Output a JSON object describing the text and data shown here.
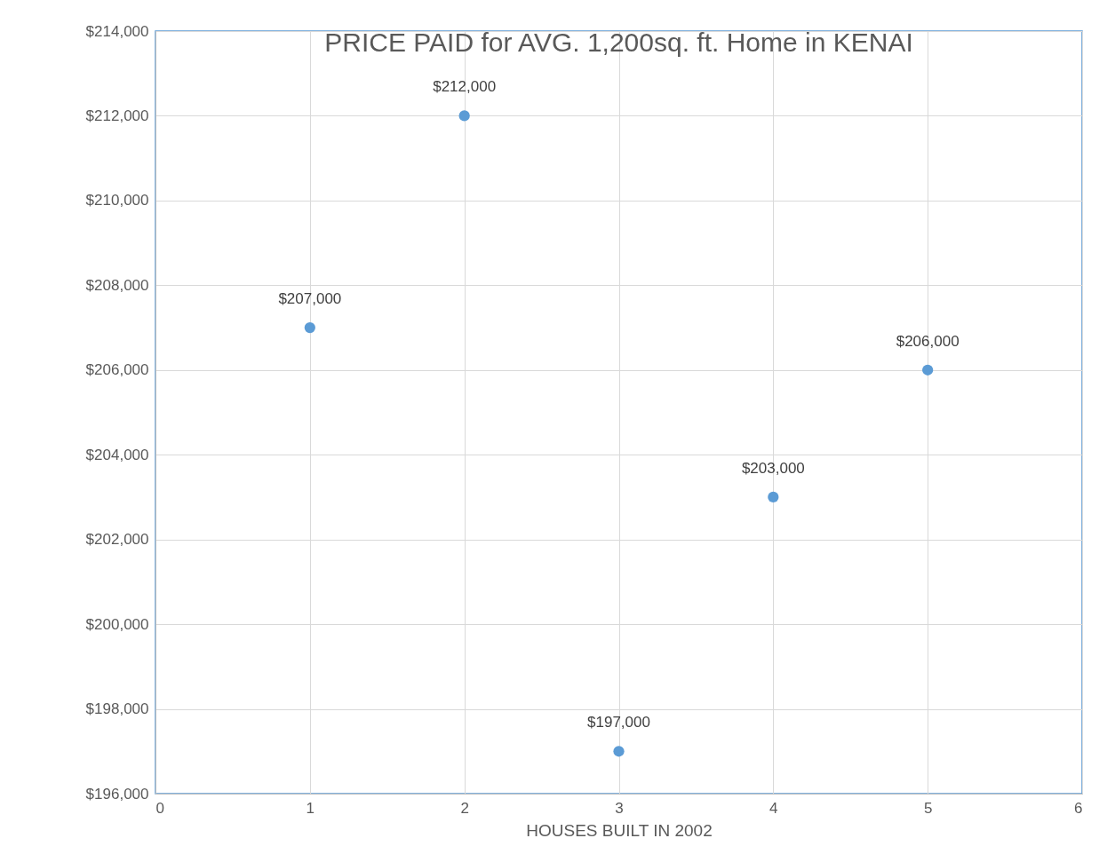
{
  "chart_data": {
    "type": "scatter",
    "title": "PRICE PAID for AVG. 1,200sq. ft. Home in KENAI",
    "xlabel": "HOUSES BUILT IN 2002",
    "x": [
      1,
      2,
      3,
      4,
      5
    ],
    "values": [
      207000,
      212000,
      197000,
      203000,
      206000
    ],
    "value_labels": [
      "$207,000",
      "$212,000",
      "$197,000",
      "$203,000",
      "$206,000"
    ],
    "color": "#5b9bd5",
    "marker": "circle",
    "grid": true,
    "xlim": [
      0,
      6
    ],
    "xticks": [
      0,
      1,
      2,
      3,
      4,
      5,
      6
    ],
    "ylim": [
      196000,
      214000
    ],
    "yticks": [
      {
        "value": 196000,
        "label": "$196,000"
      },
      {
        "value": 198000,
        "label": "$198,000"
      },
      {
        "value": 200000,
        "label": "$200,000"
      },
      {
        "value": 202000,
        "label": "$202,000"
      },
      {
        "value": 204000,
        "label": "$204,000"
      },
      {
        "value": 206000,
        "label": "$206,000"
      },
      {
        "value": 208000,
        "label": "$208,000"
      },
      {
        "value": 210000,
        "label": "$210,000"
      },
      {
        "value": 212000,
        "label": "$212,000"
      },
      {
        "value": 214000,
        "label": "$214,000"
      }
    ]
  }
}
